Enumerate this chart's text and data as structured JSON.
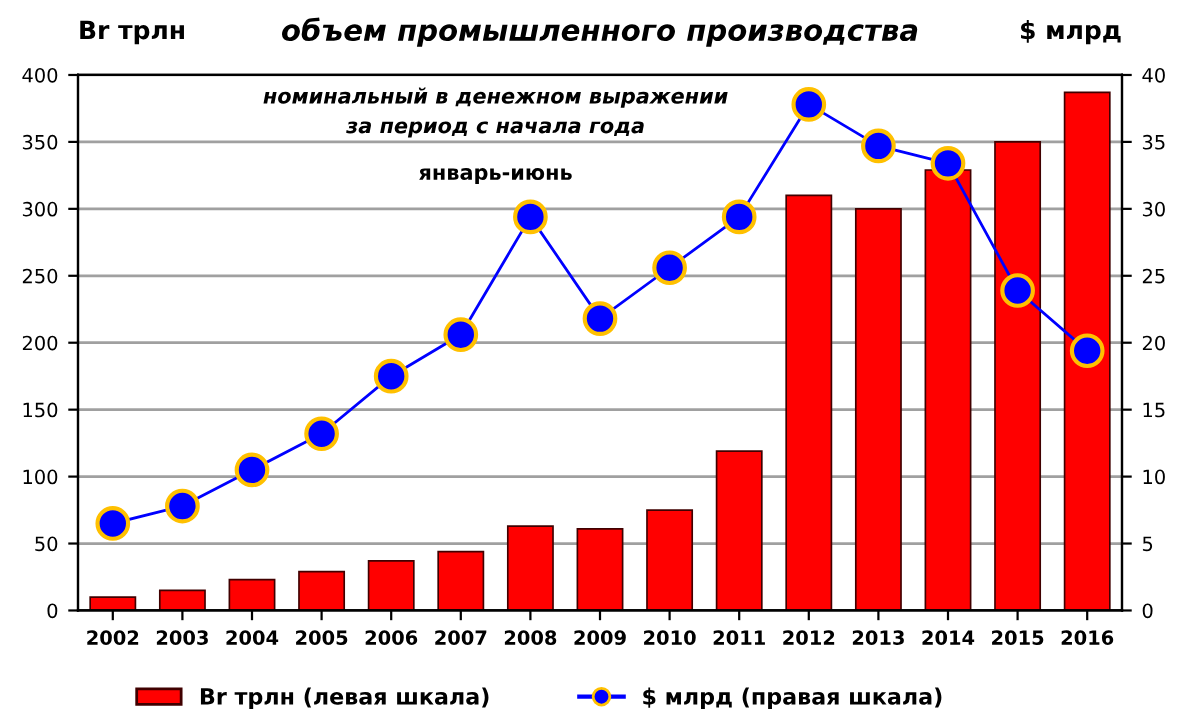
{
  "chart_data": {
    "type": "bar",
    "title": "объем промышленного производства",
    "subtitle": "номинальный в денежном выражении\nза период с начала года",
    "annotations": [
      "январь-июнь"
    ],
    "ylabel": "Br трлн",
    "y2label": "$ млрд",
    "categories": [
      "2002",
      "2003",
      "2004",
      "2005",
      "2006",
      "2007",
      "2008",
      "2009",
      "2010",
      "2011",
      "2012",
      "2013",
      "2014",
      "2015",
      "2016"
    ],
    "series": [
      {
        "name": "Br трлн (левая шкала)",
        "color": "#ff0000",
        "values": [
          10,
          15,
          23,
          29,
          37,
          44,
          63,
          61,
          75,
          119,
          310,
          300,
          329,
          350,
          387
        ]
      },
      {
        "name": "$ млрд (правая шкала)",
        "type": "line",
        "axis": "y2",
        "color": "#0000ff",
        "marker": "circle",
        "values": [
          6.5,
          7.8,
          10.5,
          13.2,
          17.5,
          20.6,
          29.4,
          21.8,
          25.6,
          29.4,
          37.8,
          34.7,
          33.4,
          23.9,
          19.4
        ]
      }
    ],
    "ylim": [
      0,
      400
    ],
    "yticks": [
      0,
      50,
      100,
      150,
      200,
      250,
      300,
      350,
      400
    ],
    "y2lim": [
      0,
      40
    ],
    "y2ticks": [
      0,
      5,
      10,
      15,
      20,
      25,
      30,
      35,
      40
    ],
    "grid": "y",
    "legend": "bottom"
  }
}
